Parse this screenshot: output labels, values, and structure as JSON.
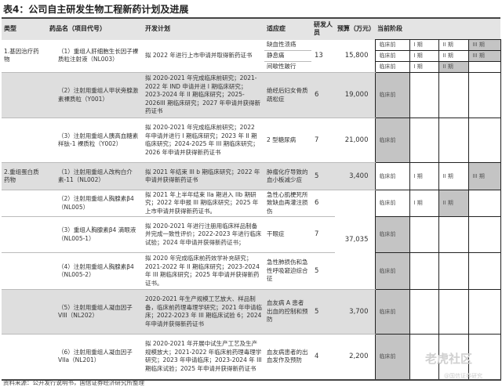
{
  "title": "表4：公司自主研发生物工程新药计划及进展",
  "headers": [
    "类型",
    "药品名（项目代号）",
    "开发计划",
    "适应症",
    "研发人员",
    "预算（万元）",
    "当前阶段"
  ],
  "stage_labels": [
    "临床前",
    "I 期",
    "II 期",
    "III 期"
  ],
  "rows": [
    {
      "shade": false,
      "type": "1.基因治疗药物",
      "drug": "（1）重组人肝细胞生长因子裸质粒注射液（NL003）",
      "plan": "拟 2022 年进行上市申请并取得新药证书",
      "indications": [
        "缺血性溃疡",
        "静息痛",
        "间歇性跛行"
      ],
      "staff": "13",
      "budget": "15,800",
      "stages": [
        {
          "shown": 4,
          "current": 3
        },
        {
          "shown": 4,
          "current": 3
        },
        {
          "shown": 3,
          "current": 2
        }
      ]
    },
    {
      "shade": true,
      "type": "",
      "drug": "（2）注射用重组人甲状旁腺激素裸质粒（Y001）",
      "plan": "拟 2020-2021 年完成临床前研究；2021-2022 年 IND 申请并进 I 期临床研究；2023-2024 年 II 期临床研究；2025-2026III 期临床研究；2027 年申请并获得新药证书",
      "indications": [
        "绝经后妇女骨质疏松症"
      ],
      "staff": "6",
      "budget": "19,000",
      "stages": [
        {
          "shown": 1,
          "current": 0
        }
      ]
    },
    {
      "shade": false,
      "type": "",
      "drug": "（3）注射用重组人胰高血糖素样肽-1 裸质粒（Y002）",
      "plan": "拟 2020-2021 年完成临床前研究；2022 年申请并进行 I 期临床研究；2023 年 II 期临床研究；2024-2025 年 III 期临床研究；2026 年申请并获得新药证书",
      "indications": [
        "2 型糖尿病"
      ],
      "staff": "7",
      "budget": "21,000",
      "stages": [
        {
          "shown": 1,
          "current": 0
        }
      ]
    },
    {
      "shade": true,
      "type": "2.重组蛋白质药物",
      "drug": "（1）注射用重组人改构白介素-11（NL002）",
      "plan": "拟 2021 年结束 III b 期临床研究；2022 年申请并获得新药证书",
      "indications": [
        "肿瘤化疗导致的血小板减少症"
      ],
      "staff": "5",
      "budget": "3,400",
      "stages": [
        {
          "shown": 4,
          "current": 3
        }
      ]
    },
    {
      "shade": false,
      "type": "",
      "drug": "（2）注射用重组人胸腺素β4（NL005）",
      "plan": "拟 2021 年上半年结束 IIa 期进入 IIb 期研究；2022 年申报 III 期临床研究；2025 年上市申请并获得新药证书。",
      "indications": [
        "急性心肌梗死所致缺血再灌注损伤"
      ],
      "staff": "6",
      "budget": "",
      "stages": [
        {
          "shown": 3,
          "current": 2
        }
      ]
    },
    {
      "shade": false,
      "type": "",
      "drug": "（3）重组人胸腺素β4 滴眼液（NL005-1）",
      "plan": "拟 2020-2021 年进行注册用临床样品制备并完成一致性评价；2022-2023 年进行临床试验；2024 年申请并获得新药证书；",
      "indications": [
        "干眼症"
      ],
      "staff": "7",
      "budget": "37,035",
      "stages": [
        {
          "shown": 1,
          "current": 0
        }
      ]
    },
    {
      "shade": false,
      "type": "",
      "drug": "（4）注射用重组人胸腺素β4（NL005-2）",
      "plan": "拟 2020 年完成临床前药效学补充研究；2021-2022 年 II 期临床研究；2023-2024 年 III 期临床研究；2025 年申请并获得新药证书。",
      "indications": [
        "急性肺损伤和急性呼吸窘迫综合征"
      ],
      "staff": "5",
      "budget": "",
      "stages": [
        {
          "shown": 1,
          "current": 0
        }
      ]
    },
    {
      "shade": true,
      "type": "",
      "drug": "（5）注射用重组人凝血因子 VIII（NL202）",
      "plan": "2020-2021 年生产规模工艺放大、样品制备，临床前药理毒理学研究；2021 年申请临床；2022-2023 年 III 期临床试验 6；2024 年申请并获得新药证书",
      "indications": [
        "血友病 A 患者出血的控制和预防"
      ],
      "staff": "5",
      "budget": "3,700",
      "stages": [
        {
          "shown": 1,
          "current": 0
        }
      ]
    },
    {
      "shade": false,
      "type": "",
      "drug": "（6）注射用重组人凝血因子 VIIa（NL201）",
      "plan": "拟 2020-2021 年开展中试生产工艺及生产规模放大；2021-2022 年临床前药理毒理学研究；2023 年申请临床；2023-2024 年 III 期临床试验；2025 年申请并获得新药证书",
      "indications": [
        "血友病患者的出血发作及预防"
      ],
      "staff": "4",
      "budget": "2,200",
      "stages": [
        {
          "shown": 1,
          "current": 0
        }
      ]
    }
  ],
  "footer": "资料来源：公开发行说明书，国信证券经济研究所整理",
  "watermark": "老虎社区",
  "watermark_sub": "@国信证券研究"
}
